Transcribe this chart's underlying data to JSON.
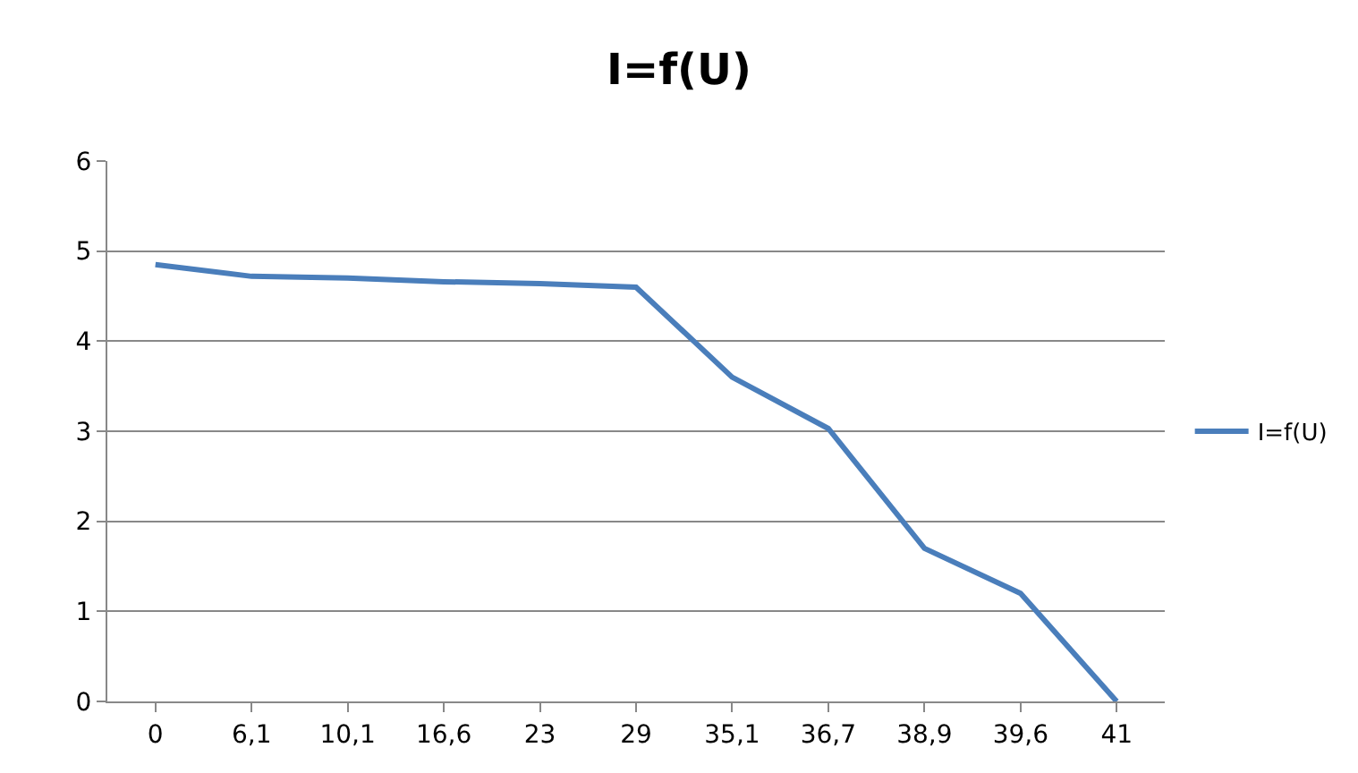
{
  "chart_data": {
    "type": "line",
    "title": "I=f(U)",
    "categories": [
      "0",
      "6,1",
      "10,1",
      "16,6",
      "23",
      "29",
      "35,1",
      "36,7",
      "38,9",
      "39,6",
      "41"
    ],
    "series": [
      {
        "name": "I=f(U)",
        "color": "#4a7ebb",
        "values": [
          4.85,
          4.72,
          4.7,
          4.66,
          4.64,
          4.6,
          3.6,
          3.03,
          1.7,
          1.2,
          0
        ]
      }
    ],
    "ylim": [
      0,
      6
    ],
    "yticks": [
      0,
      1,
      2,
      3,
      4,
      5,
      6
    ],
    "grid": "y",
    "legend": "right",
    "marker": "none",
    "line_style": "solid"
  }
}
